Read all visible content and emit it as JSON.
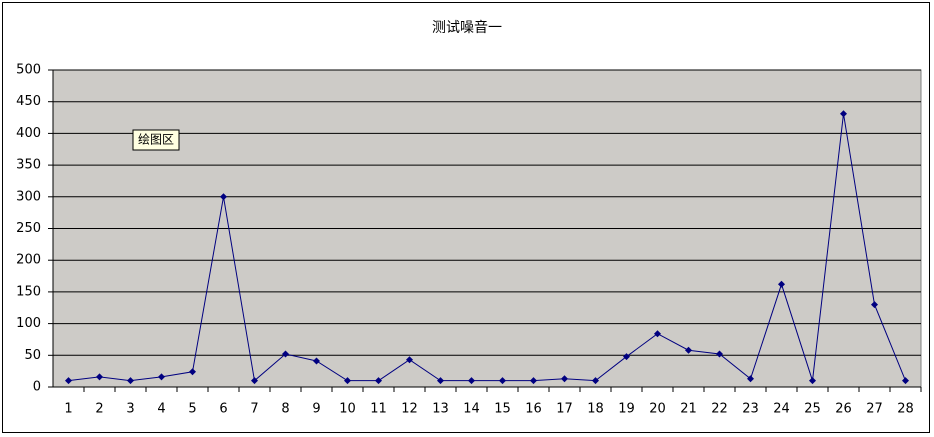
{
  "chart_data": {
    "type": "line",
    "title": "测试噪音一",
    "annotation": "绘图区",
    "categories": [
      "1",
      "2",
      "3",
      "4",
      "5",
      "6",
      "7",
      "8",
      "9",
      "10",
      "11",
      "12",
      "13",
      "14",
      "15",
      "16",
      "17",
      "18",
      "19",
      "20",
      "21",
      "22",
      "23",
      "24",
      "25",
      "26",
      "27",
      "28"
    ],
    "series": [
      {
        "name": "测试噪音一",
        "color": "#000080",
        "values": [
          10,
          16,
          10,
          16,
          24,
          300,
          10,
          52,
          41,
          10,
          10,
          43,
          10,
          10,
          10,
          10,
          13,
          10,
          48,
          84,
          58,
          52,
          13,
          162,
          10,
          431,
          130,
          10
        ]
      }
    ],
    "ylim": [
      0,
      500
    ],
    "yticks": [
      0,
      50,
      100,
      150,
      200,
      250,
      300,
      350,
      400,
      450,
      500
    ],
    "grid": true,
    "plot_background": "#cdcbc7"
  }
}
